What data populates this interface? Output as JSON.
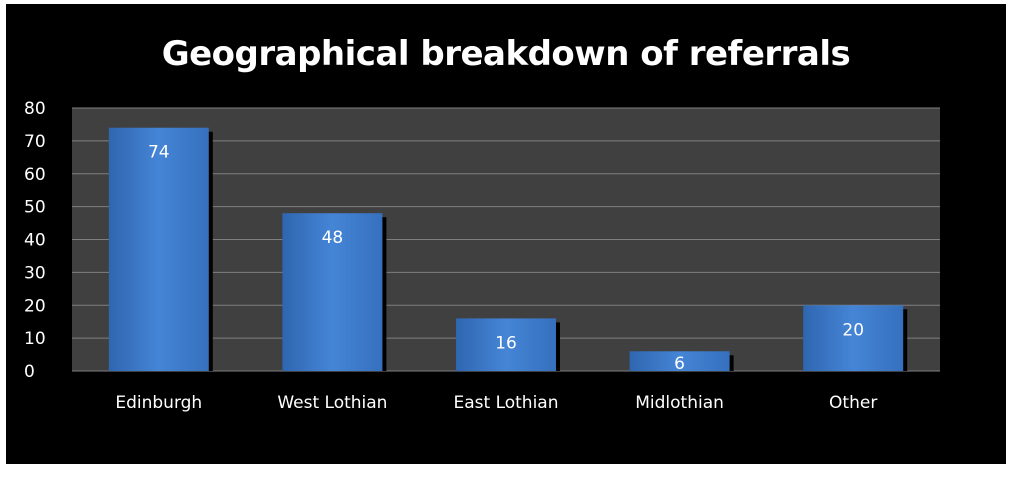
{
  "chart_data": {
    "type": "bar",
    "title": "Geographical breakdown of referrals",
    "categories": [
      "Edinburgh",
      "West Lothian",
      "East Lothian",
      "Midlothian",
      "Other"
    ],
    "values": [
      74,
      48,
      16,
      6,
      20
    ],
    "ylim": [
      0,
      80
    ],
    "yticks": [
      0,
      10,
      20,
      30,
      40,
      50,
      60,
      70,
      80
    ],
    "data_labels": [
      "74",
      "48",
      "16",
      "6",
      "20"
    ],
    "grid": true,
    "legend": "none",
    "colors": {
      "background": "#000000",
      "plot_area": "#404040",
      "bar": "#3b78c7",
      "bar_light": "#4a8ad8",
      "bar_dark": "#2c5fa3",
      "shadow": "#000000",
      "gridline": "#7f7f7f",
      "text": "#ffffff"
    }
  }
}
